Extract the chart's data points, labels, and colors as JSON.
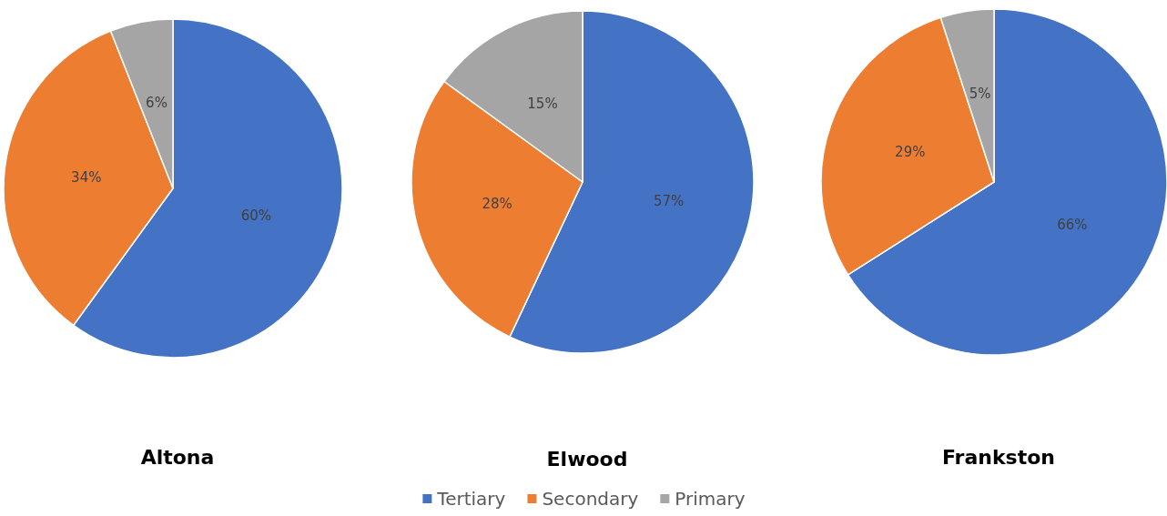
{
  "chart_data": [
    {
      "type": "pie",
      "title": "Altona",
      "categories": [
        null,
        null,
        null
      ],
      "values": [
        60,
        34,
        6
      ],
      "value_labels": [
        "60%",
        "34%",
        "6%"
      ],
      "colors": [
        "#4472c4",
        "#ed7d31",
        "#a5a5a5"
      ]
    },
    {
      "type": "pie",
      "title": "Elwood",
      "categories": [
        "Tertiary",
        "Secondary",
        "Primary"
      ],
      "values": [
        57,
        28,
        15
      ],
      "value_labels": [
        "57%",
        "28%",
        "15%"
      ],
      "colors": [
        "#4472c4",
        "#ed7d31",
        "#a5a5a5"
      ],
      "legend": "bottom"
    },
    {
      "type": "pie",
      "title": "Frankston",
      "categories": [
        null,
        null,
        null
      ],
      "values": [
        66,
        29,
        5
      ],
      "value_labels": [
        "66%",
        "29%",
        "5%"
      ],
      "colors": [
        "#4472c4",
        "#ed7d31",
        "#a5a5a5"
      ]
    }
  ]
}
